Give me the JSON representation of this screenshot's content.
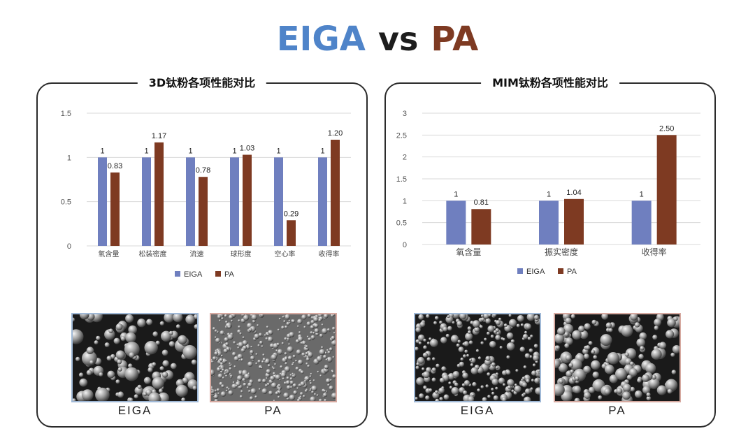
{
  "title": {
    "left": "EIGA",
    "vs": "vs",
    "right": "PA"
  },
  "colors": {
    "eiga": "#6f7fbf",
    "pa": "#7e3a22",
    "title_eiga": "#4f84c9",
    "title_pa": "#7e3a22"
  },
  "panels": [
    {
      "heading": "3D钛粉各项性能对比",
      "photo_left_caption": "EIGA",
      "photo_right_caption": "PA"
    },
    {
      "heading": "MIM钛粉各项性能对比",
      "photo_left_caption": "EIGA",
      "photo_right_caption": "PA"
    }
  ],
  "chart_data": [
    {
      "type": "bar",
      "categories": [
        "氧含量",
        "松装密度",
        "流速",
        "球形度",
        "空心率",
        "收得率"
      ],
      "series": [
        {
          "name": "EIGA",
          "values": [
            1,
            1,
            1,
            1,
            1,
            1
          ],
          "labels": [
            "1",
            "1",
            "1",
            "1",
            "1",
            "1"
          ]
        },
        {
          "name": "PA",
          "values": [
            0.83,
            1.17,
            0.78,
            1.03,
            0.29,
            1.2
          ],
          "labels": [
            "0.83",
            "1.17",
            "0.78",
            "1.03",
            "0.29",
            "1.20"
          ]
        }
      ],
      "yticks": [
        "0",
        "0.5",
        "1",
        "1.5"
      ],
      "ylim": [
        0,
        1.5
      ],
      "grid": true,
      "legend": "bottom"
    },
    {
      "type": "bar",
      "categories": [
        "氧含量",
        "振实密度",
        "收得率"
      ],
      "series": [
        {
          "name": "EIGA",
          "values": [
            1,
            1,
            1
          ],
          "labels": [
            "1",
            "1",
            "1"
          ]
        },
        {
          "name": "PA",
          "values": [
            0.81,
            1.04,
            2.5
          ],
          "labels": [
            "0.81",
            "1.04",
            "2.50"
          ]
        }
      ],
      "yticks": [
        "0",
        "0.5",
        "1",
        "1.5",
        "2",
        "2.5",
        "3"
      ],
      "ylim": [
        0,
        3
      ],
      "grid": true,
      "legend": "bottom"
    }
  ]
}
